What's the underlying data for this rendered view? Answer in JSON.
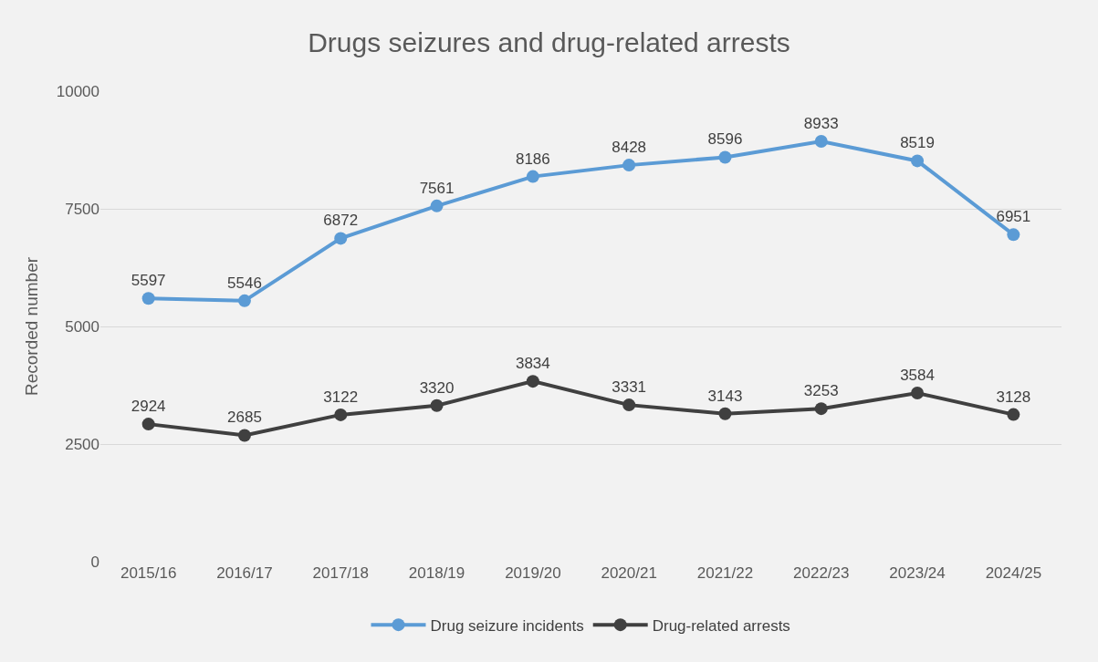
{
  "chart_data": {
    "type": "line",
    "title": "Drugs seizures and drug-related arrests",
    "ylabel": "Recorded number",
    "categories": [
      "2015/16",
      "2016/17",
      "2017/18",
      "2018/19",
      "2019/20",
      "2020/21",
      "2021/22",
      "2022/23",
      "2023/24",
      "2024/25"
    ],
    "series": [
      {
        "name": "Drug seizure incidents",
        "color": "#5b9bd5",
        "values": [
          5597,
          5546,
          6872,
          7561,
          8186,
          8428,
          8596,
          8933,
          8519,
          6951
        ]
      },
      {
        "name": "Drug-related arrests",
        "color": "#404040",
        "values": [
          2924,
          2685,
          3122,
          3320,
          3834,
          3331,
          3143,
          3253,
          3584,
          3128
        ]
      }
    ],
    "ylim": [
      0,
      10000
    ],
    "yticks": [
      0,
      2500,
      5000,
      7500,
      10000
    ],
    "grid": "y",
    "legend": "bottom",
    "marker": "circle",
    "line_style": "solid",
    "data_labels": true
  }
}
